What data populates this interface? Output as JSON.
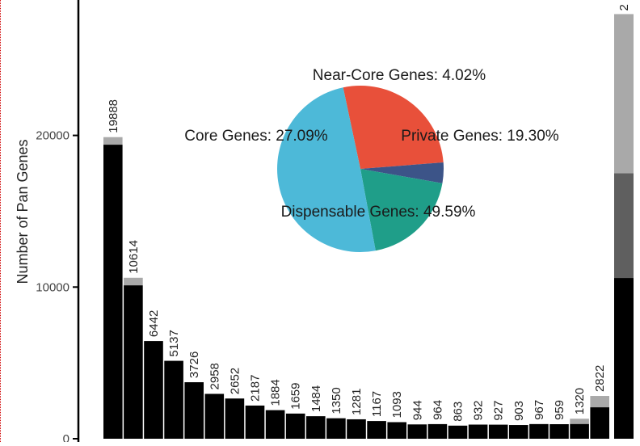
{
  "chart_data": [
    {
      "type": "bar",
      "ylabel": "Number of Pan Genes",
      "y_ticks": [
        "0",
        "10000",
        "20000"
      ],
      "ylim": [
        0,
        29000
      ],
      "grid": false,
      "bar_color": "#000000",
      "extra_color": "#a9a9a9",
      "series": [
        {
          "values": [
            19888,
            10614,
            6442,
            5137,
            3726,
            2958,
            2652,
            2187,
            1884,
            1659,
            1484,
            1350,
            1281,
            1167,
            1093,
            944,
            964,
            863,
            932,
            927,
            903,
            967,
            959,
            1320,
            2822
          ]
        }
      ],
      "labels": [
        "19888",
        "10614",
        "6442",
        "5137",
        "3726",
        "2958",
        "2652",
        "2187",
        "1884",
        "1659",
        "1484",
        "1350",
        "1281",
        "1167",
        "1093",
        "944",
        "964",
        "863",
        "932",
        "927",
        "903",
        "967",
        "959",
        "1320",
        "2822"
      ],
      "stacked_total": {
        "label_fragment": "2",
        "segments": [
          {
            "value": 10600,
            "color": "#000000"
          },
          {
            "value": 6900,
            "color": "#5f5f5f"
          },
          {
            "value": 10500,
            "color": "#a9a9a9"
          }
        ]
      }
    },
    {
      "type": "pie",
      "slices": [
        {
          "label": "Dispensable Genes: 49.59%",
          "value": 49.59,
          "color": "#4db9d8"
        },
        {
          "label": "Core Genes: 27.09%",
          "value": 27.09,
          "color": "#e8503a"
        },
        {
          "label": "Near-Core Genes: 4.02%",
          "value": 4.02,
          "color": "#3c5488"
        },
        {
          "label": "Private Genes: 19.30%",
          "value": 19.3,
          "color": "#1f9e89"
        }
      ]
    }
  ]
}
